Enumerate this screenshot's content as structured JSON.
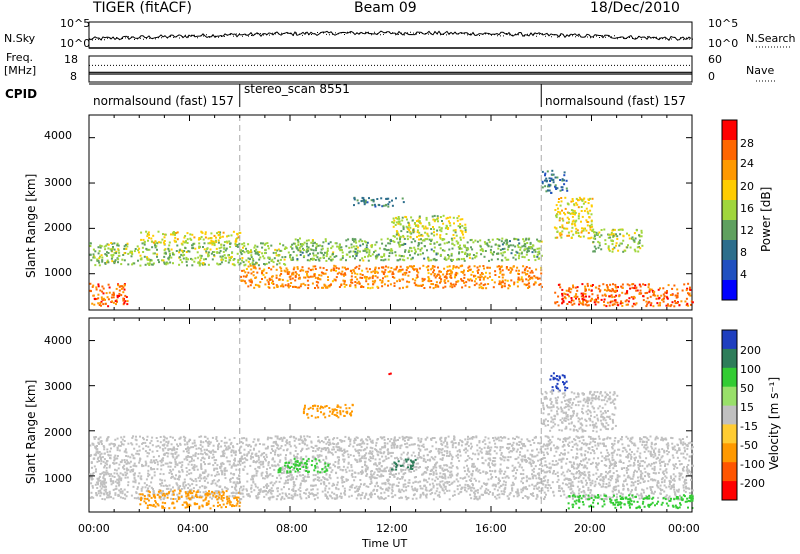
{
  "header": {
    "radar": "TIGER (fitACF)",
    "beam": "Beam 09",
    "date": "18/Dec/2010"
  },
  "top_panel": {
    "left_label": "N.Sky",
    "right_label": "N.Search",
    "left_ticks": [
      "10^5",
      "10^0"
    ],
    "right_ticks": [
      "10^5",
      "10^0"
    ]
  },
  "freq_panel": {
    "left_label_1": "Freq.",
    "left_label_2": "[MHz]",
    "right_label": "Nave",
    "left_ticks": [
      "18",
      "8"
    ],
    "right_ticks": [
      "60",
      "0"
    ],
    "freq_level_mhz": 11.5,
    "nave_level": 40
  },
  "cpid_panel": {
    "label": "CPID",
    "segments": [
      {
        "name": "normalsound (fast) 157",
        "start_h": 0,
        "end_h": 6
      },
      {
        "name": "stereo_scan 8551",
        "start_h": 6,
        "end_h": 18
      },
      {
        "name": "normalsound (fast) 157",
        "start_h": 18,
        "end_h": 24
      }
    ]
  },
  "power_panel": {
    "ylabel": "Slant Range [km]",
    "cbar_label": "Power [dB]",
    "cbar_ticks": [
      "28",
      "24",
      "20",
      "16",
      "12",
      "8",
      "4"
    ],
    "cbar_colors": [
      "#ff0000",
      "#ff6600",
      "#ff9900",
      "#ffcc00",
      "#a0d63c",
      "#5fa05f",
      "#2d6e8c",
      "#2050c0",
      "#0000ff"
    ]
  },
  "velocity_panel": {
    "ylabel": "Slant Range [km]",
    "cbar_label": "Velocity [m s⁻¹]",
    "cbar_ticks": [
      "200",
      "100",
      "50",
      "15",
      "-15",
      "-50",
      "-100",
      "-200"
    ],
    "cbar_colors": [
      "#1f3fbf",
      "#2e7d5a",
      "#33cc33",
      "#99e06a",
      "#c0c0c0",
      "#ffcc33",
      "#ff9900",
      "#ff5500",
      "#ff0000"
    ]
  },
  "xaxis": {
    "label": "Time UT",
    "ticks": [
      "00:00",
      "04:00",
      "08:00",
      "12:00",
      "16:00",
      "20:00",
      "00:00"
    ]
  },
  "chart_data": [
    {
      "type": "heatmap",
      "title": "TIGER (fitACF) Beam 09 18/Dec/2010",
      "xlabel": "Time UT",
      "ylabel": "Slant Range [km]",
      "colorbar_label": "Power [dB]",
      "x_ticks": [
        "00:00",
        "04:00",
        "08:00",
        "12:00",
        "16:00",
        "20:00",
        "00:00"
      ],
      "xlim_hours": [
        0,
        24
      ],
      "ylim_km": [
        200,
        4500
      ],
      "y_ticks": [
        1000,
        2000,
        3000,
        4000
      ],
      "color_scale_db": [
        0,
        30
      ],
      "features": [
        {
          "start_h": 0.0,
          "end_h": 1.5,
          "range_km": [
            300,
            800
          ],
          "value_db": 26
        },
        {
          "start_h": 0.0,
          "end_h": 8.0,
          "range_km": [
            1200,
            1700
          ],
          "value_db": 14
        },
        {
          "start_h": 2.0,
          "end_h": 6.0,
          "range_km": [
            1700,
            1950
          ],
          "value_db": 17
        },
        {
          "start_h": 6.0,
          "end_h": 18.0,
          "range_km": [
            700,
            1200
          ],
          "value_db": 24
        },
        {
          "start_h": 8.0,
          "end_h": 18.0,
          "range_km": [
            1300,
            1800
          ],
          "value_db": 13
        },
        {
          "start_h": 12.0,
          "end_h": 15.0,
          "range_km": [
            1800,
            2300
          ],
          "value_db": 16
        },
        {
          "start_h": 10.5,
          "end_h": 12.5,
          "range_km": [
            2500,
            2700
          ],
          "value_db": 9
        },
        {
          "start_h": 18.5,
          "end_h": 24.0,
          "range_km": [
            300,
            800
          ],
          "value_db": 26
        },
        {
          "start_h": 18.5,
          "end_h": 20.0,
          "range_km": [
            1800,
            2700
          ],
          "value_db": 18
        },
        {
          "start_h": 20.0,
          "end_h": 22.0,
          "range_km": [
            1500,
            2000
          ],
          "value_db": 15
        },
        {
          "start_h": 18.0,
          "end_h": 19.0,
          "range_km": [
            2800,
            3300
          ],
          "value_db": 7
        }
      ]
    },
    {
      "type": "heatmap",
      "title": "",
      "xlabel": "Time UT",
      "ylabel": "Slant Range [km]",
      "colorbar_label": "Velocity [m s⁻¹]",
      "x_ticks": [
        "00:00",
        "04:00",
        "08:00",
        "12:00",
        "16:00",
        "20:00",
        "00:00"
      ],
      "xlim_hours": [
        0,
        24
      ],
      "ylim_km": [
        200,
        4500
      ],
      "y_ticks": [
        1000,
        2000,
        3000,
        4000
      ],
      "color_scale_ms": [
        -200,
        200
      ],
      "features": [
        {
          "start_h": 0.0,
          "end_h": 24.0,
          "range_km": [
            500,
            1900
          ],
          "value_ms": 0
        },
        {
          "start_h": 2.0,
          "end_h": 6.0,
          "range_km": [
            300,
            700
          ],
          "value_ms": -60
        },
        {
          "start_h": 7.5,
          "end_h": 9.5,
          "range_km": [
            1100,
            1400
          ],
          "value_ms": 60
        },
        {
          "start_h": 12.0,
          "end_h": 13.0,
          "range_km": [
            1150,
            1400
          ],
          "value_ms": 110
        },
        {
          "start_h": 8.5,
          "end_h": 10.5,
          "range_km": [
            2300,
            2600
          ],
          "value_ms": -60
        },
        {
          "start_h": 18.3,
          "end_h": 19.0,
          "range_km": [
            2900,
            3300
          ],
          "value_ms": 200
        },
        {
          "start_h": 18.0,
          "end_h": 21.0,
          "range_km": [
            2000,
            2900
          ],
          "value_ms": 0
        },
        {
          "start_h": 19.0,
          "end_h": 24.0,
          "range_km": [
            300,
            600
          ],
          "value_ms": 40
        },
        {
          "start_h": 11.8,
          "end_h": 12.0,
          "range_km": [
            3250,
            3350
          ],
          "value_ms": -200
        }
      ]
    }
  ]
}
